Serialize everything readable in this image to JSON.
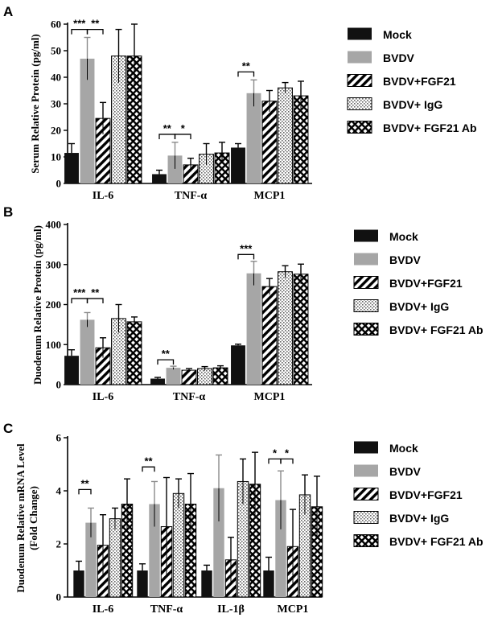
{
  "colors": {
    "mock": "#111111",
    "bvdv": "#a6a6a6",
    "stroke": "#000000"
  },
  "series_styles": [
    "solid-black",
    "solid-gray",
    "diagonal-stripes",
    "dotted",
    "crosshatch"
  ],
  "chart_data": [
    {
      "panel": "A",
      "type": "bar",
      "ylabel": "Serum Relative Protein (pg/ml)",
      "ylim": [
        0,
        60
      ],
      "yticks": [
        0,
        10,
        20,
        30,
        40,
        50,
        60
      ],
      "categories": [
        "IL-6",
        "TNF-α",
        "MCP1"
      ],
      "series": [
        {
          "name": "Mock",
          "values": [
            11.5,
            3.5,
            13.5
          ],
          "errors": [
            3.5,
            1.5,
            1.5
          ]
        },
        {
          "name": "BVDV",
          "values": [
            47,
            10.5,
            34
          ],
          "errors": [
            8,
            5,
            5
          ]
        },
        {
          "name": "BVDV+FGF21",
          "values": [
            24.5,
            7,
            31
          ],
          "errors": [
            6,
            2.5,
            4
          ]
        },
        {
          "name": "BVDV+ IgG",
          "values": [
            48,
            11,
            36
          ],
          "errors": [
            10,
            4,
            2
          ]
        },
        {
          "name": "BVDV+ FGF21 Ab",
          "values": [
            48,
            11.5,
            33
          ],
          "errors": [
            12,
            4,
            5.5
          ]
        }
      ],
      "significance": [
        {
          "category": 0,
          "from": 0,
          "to": 1,
          "label": "***",
          "y": 58
        },
        {
          "category": 0,
          "from": 1,
          "to": 2,
          "label": "**",
          "y": 58
        },
        {
          "category": 1,
          "from": 0,
          "to": 1,
          "label": "**",
          "y": 18.5
        },
        {
          "category": 1,
          "from": 1,
          "to": 2,
          "label": "*",
          "y": 18.5
        },
        {
          "category": 2,
          "from": 0,
          "to": 1,
          "label": "**",
          "y": 42
        }
      ]
    },
    {
      "panel": "B",
      "type": "bar",
      "ylabel": "Duodenum Relative Protein (pg/ml)",
      "ylim": [
        0,
        400
      ],
      "yticks": [
        0,
        100,
        200,
        300,
        400
      ],
      "categories": [
        "IL-6",
        "TNF-α",
        "MCP1"
      ],
      "series": [
        {
          "name": "Mock",
          "values": [
            72,
            15,
            98
          ],
          "errors": [
            15,
            3,
            3
          ]
        },
        {
          "name": "BVDV",
          "values": [
            162,
            42,
            278
          ],
          "errors": [
            18,
            4,
            30
          ]
        },
        {
          "name": "BVDV+FGF21",
          "values": [
            92,
            36,
            245
          ],
          "errors": [
            25,
            4,
            20
          ]
        },
        {
          "name": "BVDV+ IgG",
          "values": [
            165,
            40,
            282
          ],
          "errors": [
            35,
            5,
            15
          ]
        },
        {
          "name": "BVDV+ FGF21 Ab",
          "values": [
            157,
            42,
            276
          ],
          "errors": [
            12,
            5,
            25
          ]
        }
      ],
      "significance": [
        {
          "category": 0,
          "from": 0,
          "to": 1,
          "label": "***",
          "y": 215
        },
        {
          "category": 0,
          "from": 1,
          "to": 2,
          "label": "**",
          "y": 215
        },
        {
          "category": 1,
          "from": 0,
          "to": 1,
          "label": "**",
          "y": 62
        },
        {
          "category": 2,
          "from": 0,
          "to": 1,
          "label": "***",
          "y": 325
        }
      ]
    },
    {
      "panel": "C",
      "type": "bar",
      "ylabel": [
        "Duodenum Relative mRNA Level",
        "(Fold Change)"
      ],
      "ylim": [
        0,
        6
      ],
      "yticks": [
        0,
        2,
        4,
        6
      ],
      "categories": [
        "IL-6",
        "TNF-α",
        "IL-1β",
        "MCP1"
      ],
      "series": [
        {
          "name": "Mock",
          "values": [
            1.0,
            1.0,
            1.0,
            1.0
          ],
          "errors": [
            0.35,
            0.25,
            0.2,
            0.5
          ]
        },
        {
          "name": "BVDV",
          "values": [
            2.8,
            3.5,
            4.1,
            3.65
          ],
          "errors": [
            0.55,
            0.85,
            1.25,
            1.1
          ]
        },
        {
          "name": "BVDV+FGF21",
          "values": [
            1.95,
            2.65,
            1.4,
            1.9
          ],
          "errors": [
            1.15,
            1.85,
            0.85,
            1.4
          ]
        },
        {
          "name": "BVDV+ IgG",
          "values": [
            2.95,
            3.9,
            4.35,
            3.85
          ],
          "errors": [
            0.4,
            0.55,
            0.85,
            0.75
          ]
        },
        {
          "name": "BVDV+ FGF21 Ab",
          "values": [
            3.5,
            3.5,
            4.25,
            3.4
          ],
          "errors": [
            0.95,
            1.15,
            1.2,
            1.15
          ]
        }
      ],
      "significance": [
        {
          "category": 0,
          "from": 0,
          "to": 1,
          "label": "**",
          "y": 4.05
        },
        {
          "category": 1,
          "from": 0,
          "to": 1,
          "label": "**",
          "y": 4.9
        },
        {
          "category": 3,
          "from": 0,
          "to": 1,
          "label": "*",
          "y": 5.2
        },
        {
          "category": 3,
          "from": 1,
          "to": 2,
          "label": "*",
          "y": 5.2
        }
      ]
    }
  ]
}
